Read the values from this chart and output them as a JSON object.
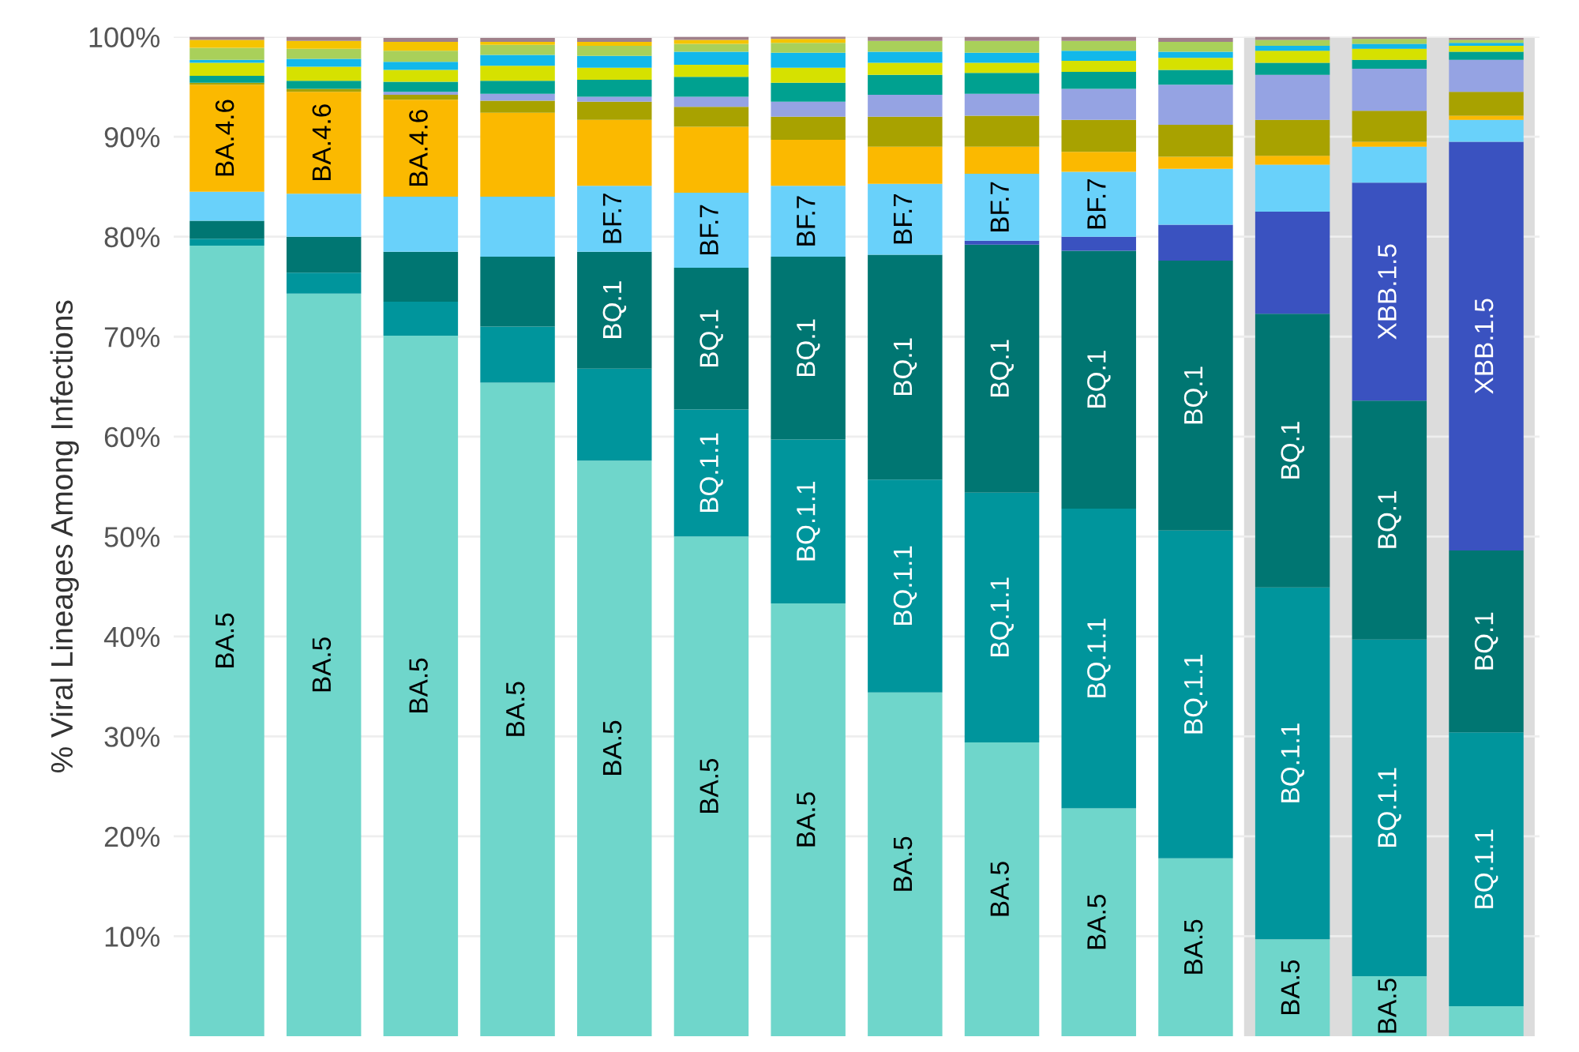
{
  "chart_data": {
    "type": "bar",
    "stacked": true,
    "ylabel": "% Viral Lineages Among Infections",
    "categories": [
      null,
      null,
      null,
      null,
      null,
      null,
      null,
      null,
      null,
      null,
      null,
      null,
      null,
      null
    ],
    "ylim": [
      0,
      100
    ],
    "yticks": [
      {
        "value": 10,
        "label": "10%"
      },
      {
        "value": 20,
        "label": "20%"
      },
      {
        "value": 30,
        "label": "30%"
      },
      {
        "value": 40,
        "label": "40%"
      },
      {
        "value": 50,
        "label": "50%"
      },
      {
        "value": 60,
        "label": "60%"
      },
      {
        "value": 70,
        "label": "70%"
      },
      {
        "value": 80,
        "label": "80%"
      },
      {
        "value": 90,
        "label": "90%"
      },
      {
        "value": 100,
        "label": "100%"
      }
    ],
    "grid": "y",
    "legend": false,
    "series": [
      {
        "color": "#6fd6cb",
        "values": [
          79.1,
          74.3,
          70.1,
          65.4,
          57.6,
          50.0,
          43.3,
          34.4,
          29.4,
          22.8,
          17.8,
          9.7,
          6.0,
          3.0
        ],
        "value_labels": [
          "BA.5",
          "BA.5",
          "BA.5",
          "BA.5",
          "BA.5",
          "BA.5",
          "BA.5",
          "BA.5",
          "BA.5",
          "BA.5",
          "BA.5",
          "BA.5",
          "BA.5",
          null
        ]
      },
      {
        "color": "#00959c",
        "values": [
          0.7,
          2.1,
          3.4,
          5.6,
          9.2,
          12.7,
          16.4,
          21.3,
          25.0,
          30.0,
          32.8,
          35.2,
          33.7,
          27.4
        ],
        "value_labels": [
          null,
          null,
          null,
          null,
          null,
          "BQ.1.1",
          "BQ.1.1",
          "BQ.1.1",
          "BQ.1.1",
          "BQ.1.1",
          "BQ.1.1",
          "BQ.1.1",
          "BQ.1.1",
          "BQ.1.1"
        ]
      },
      {
        "color": "#007672",
        "values": [
          1.8,
          3.6,
          5.0,
          7.0,
          11.7,
          14.2,
          18.3,
          22.5,
          24.8,
          25.8,
          27.0,
          27.4,
          23.9,
          18.2
        ],
        "value_labels": [
          null,
          null,
          null,
          null,
          "BQ.1",
          "BQ.1",
          "BQ.1",
          "BQ.1",
          "BQ.1",
          "BQ.1",
          "BQ.1",
          "BQ.1",
          "BQ.1",
          "BQ.1"
        ]
      },
      {
        "color": "#3a52c0",
        "values": [
          0,
          0,
          0,
          0,
          0,
          0,
          0,
          0,
          0.4,
          1.4,
          3.6,
          10.2,
          21.8,
          40.9
        ],
        "value_labels": [
          null,
          null,
          null,
          null,
          null,
          null,
          null,
          null,
          null,
          null,
          null,
          null,
          "XBB.1.5",
          "XBB.1.5"
        ]
      },
      {
        "color": "#69d1fa",
        "values": [
          2.9,
          4.3,
          5.5,
          6.0,
          6.6,
          7.5,
          7.1,
          7.1,
          6.7,
          6.5,
          5.6,
          4.7,
          3.6,
          2.2
        ],
        "value_labels": [
          null,
          null,
          null,
          null,
          "BF.7",
          "BF.7",
          "BF.7",
          "BF.7",
          "BF.7",
          "BF.7",
          null,
          null,
          null,
          null
        ]
      },
      {
        "color": "#fbb900",
        "values": [
          10.7,
          10.2,
          9.7,
          8.4,
          6.6,
          6.6,
          4.6,
          3.7,
          2.7,
          2.0,
          1.2,
          0.9,
          0.5,
          0.4
        ],
        "value_labels": [
          "BA.4.6",
          "BA.4.6",
          "BA.4.6",
          null,
          null,
          null,
          null,
          null,
          null,
          null,
          null,
          null,
          null,
          null
        ]
      },
      {
        "color": "#a8a200",
        "values": [
          0.2,
          0.3,
          0.5,
          1.2,
          1.8,
          2.0,
          2.3,
          3.0,
          3.1,
          3.2,
          3.2,
          3.6,
          3.1,
          2.4
        ]
      },
      {
        "color": "#95a3e3",
        "values": [
          0,
          0,
          0.3,
          0.7,
          0.5,
          1.0,
          1.5,
          2.2,
          2.2,
          3.1,
          4.0,
          4.5,
          4.2,
          3.2
        ]
      },
      {
        "color": "#00a190",
        "values": [
          0.7,
          0.8,
          1.0,
          1.3,
          1.7,
          2.0,
          1.9,
          2.0,
          2.1,
          1.7,
          1.5,
          1.2,
          0.9,
          0.8
        ]
      },
      {
        "color": "#d6e100",
        "values": [
          1.3,
          1.4,
          1.2,
          1.5,
          1.2,
          1.2,
          1.5,
          1.2,
          1.0,
          1.1,
          1.2,
          1.2,
          1.1,
          0.6
        ]
      },
      {
        "color": "#12b8ea",
        "values": [
          0.3,
          0.8,
          0.8,
          1.1,
          1.2,
          1.3,
          1.5,
          1.1,
          1.0,
          1.0,
          0.6,
          0.5,
          0.5,
          0.3
        ]
      },
      {
        "color": "#a9d05a",
        "values": [
          1.2,
          1.0,
          1.1,
          1.0,
          1.0,
          0.8,
          1.0,
          1.1,
          1.2,
          1.0,
          1.0,
          0.6,
          0.5,
          0.3
        ]
      },
      {
        "color": "#f5c400",
        "values": [
          0.8,
          0.8,
          0.9,
          0.3,
          0.4,
          0.4,
          0.4,
          0,
          0,
          0,
          0,
          0,
          0,
          0
        ]
      },
      {
        "color": "#a0808a",
        "values": [
          0.3,
          0.4,
          0.4,
          0.4,
          0.4,
          0.3,
          0.3,
          0.4,
          0.4,
          0.4,
          0.4,
          0.3,
          0.2,
          0.2
        ]
      }
    ]
  }
}
